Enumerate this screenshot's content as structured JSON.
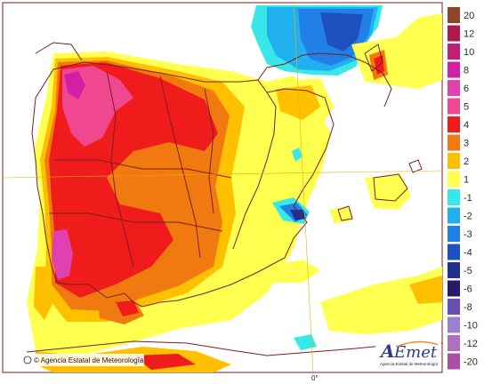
{
  "colors": {
    "background": "#ffffff",
    "border": "#7a1f1f",
    "graticule": "#e8b000",
    "brand_blue": "#2a3b8f",
    "brand_orange": "#f08a1c"
  },
  "legend": [
    {
      "label": "20",
      "color": "#8a4a2a"
    },
    {
      "label": "12",
      "color": "#b01850"
    },
    {
      "label": "10",
      "color": "#c0207a"
    },
    {
      "label": "8",
      "color": "#d020a8"
    },
    {
      "label": "6",
      "color": "#e040b0"
    },
    {
      "label": "5",
      "color": "#f04890"
    },
    {
      "label": "4",
      "color": "#f01c1c"
    },
    {
      "label": "3",
      "color": "#f07a10"
    },
    {
      "label": "2",
      "color": "#ffc000"
    },
    {
      "label": "1",
      "color": "#ffff50"
    },
    {
      "label": "-1",
      "color": "#38e8e8"
    },
    {
      "label": "-2",
      "color": "#20b0f0"
    },
    {
      "label": "-3",
      "color": "#2080e8"
    },
    {
      "label": "-4",
      "color": "#2050c0"
    },
    {
      "label": "-5",
      "color": "#203090"
    },
    {
      "label": "-6",
      "color": "#281a6a"
    },
    {
      "label": "-8",
      "color": "#6a50b0"
    },
    {
      "label": "-10",
      "color": "#9a80d0"
    },
    {
      "label": "-12",
      "color": "#b070c0"
    },
    {
      "label": "-20",
      "color": "#a850a8"
    }
  ],
  "credit": "© Agencia Estatal de Meteorología",
  "longitude_label": "0°",
  "logo": {
    "letter_a": "A",
    "rest": "Emet",
    "subtitle": "Agencia Estatal de Meteorología"
  }
}
